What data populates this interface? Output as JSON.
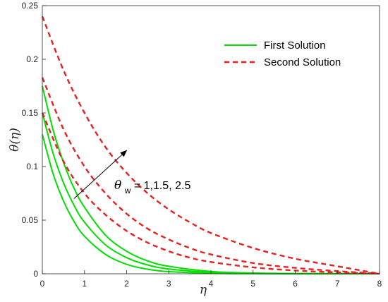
{
  "chart_data": {
    "type": "line",
    "xlabel": "η",
    "ylabel": "θ(η)",
    "xlim": [
      0,
      8
    ],
    "ylim": [
      0,
      0.25
    ],
    "xticks": [
      "0",
      "1",
      "2",
      "3",
      "4",
      "5",
      "6",
      "7",
      "8"
    ],
    "yticks": [
      "0",
      "0.05",
      "0.1",
      "0.15",
      "0.2",
      "0.25"
    ],
    "grid": false,
    "legend_placement": "top-right",
    "legend": [
      "First Solution",
      "Second Solution"
    ],
    "annotation": {
      "symbol": "θ",
      "subscript": "w",
      "text": " = 1,1.5, 2.5",
      "arrow_from": [
        0.75,
        0.07
      ],
      "arrow_to": [
        2.0,
        0.115
      ]
    },
    "colors": {
      "first": "#00e000",
      "second": "#e82020"
    },
    "series": [
      {
        "group": "first",
        "values": [
          [
            0,
            0.13
          ],
          [
            0.25,
            0.094
          ],
          [
            0.5,
            0.068
          ],
          [
            0.75,
            0.049
          ],
          [
            1,
            0.035
          ],
          [
            1.5,
            0.018
          ],
          [
            2,
            0.0088
          ],
          [
            2.5,
            0.0042
          ],
          [
            3,
            0.002
          ],
          [
            4,
            0.0005
          ],
          [
            5,
            0.0001
          ],
          [
            6,
            0
          ],
          [
            7,
            0
          ],
          [
            8,
            0
          ]
        ]
      },
      {
        "group": "first",
        "values": [
          [
            0,
            0.15
          ],
          [
            0.25,
            0.113
          ],
          [
            0.5,
            0.085
          ],
          [
            0.75,
            0.064
          ],
          [
            1,
            0.048
          ],
          [
            1.5,
            0.027
          ],
          [
            2,
            0.015
          ],
          [
            2.5,
            0.0082
          ],
          [
            3,
            0.0045
          ],
          [
            4,
            0.0012
          ],
          [
            5,
            0.0003
          ],
          [
            6,
            0.0001
          ],
          [
            7,
            0
          ],
          [
            8,
            0
          ]
        ]
      },
      {
        "group": "first",
        "values": [
          [
            0,
            0.175
          ],
          [
            0.25,
            0.135
          ],
          [
            0.5,
            0.104
          ],
          [
            0.75,
            0.08
          ],
          [
            1,
            0.062
          ],
          [
            1.5,
            0.036
          ],
          [
            2,
            0.021
          ],
          [
            2.5,
            0.012
          ],
          [
            3,
            0.007
          ],
          [
            4,
            0.0022
          ],
          [
            5,
            0.0007
          ],
          [
            6,
            0.0002
          ],
          [
            7,
            0.0001
          ],
          [
            8,
            0
          ]
        ]
      },
      {
        "group": "second",
        "values": [
          [
            0,
            0.15
          ],
          [
            0.5,
            0.105
          ],
          [
            1,
            0.075
          ],
          [
            1.5,
            0.055
          ],
          [
            2,
            0.04
          ],
          [
            2.5,
            0.029
          ],
          [
            3,
            0.021
          ],
          [
            3.5,
            0.015
          ],
          [
            4,
            0.011
          ],
          [
            5,
            0.006
          ],
          [
            6,
            0.003
          ],
          [
            7,
            0.0013
          ],
          [
            8,
            0
          ]
        ]
      },
      {
        "group": "second",
        "values": [
          [
            0,
            0.183
          ],
          [
            0.5,
            0.135
          ],
          [
            1,
            0.1
          ],
          [
            1.5,
            0.075
          ],
          [
            2,
            0.056
          ],
          [
            2.5,
            0.042
          ],
          [
            3,
            0.032
          ],
          [
            3.5,
            0.024
          ],
          [
            4,
            0.018
          ],
          [
            5,
            0.01
          ],
          [
            6,
            0.0055
          ],
          [
            7,
            0.0025
          ],
          [
            8,
            0
          ]
        ]
      },
      {
        "group": "second",
        "values": [
          [
            0,
            0.24
          ],
          [
            0.5,
            0.19
          ],
          [
            1,
            0.15
          ],
          [
            1.5,
            0.118
          ],
          [
            2,
            0.094
          ],
          [
            2.5,
            0.075
          ],
          [
            3,
            0.06
          ],
          [
            3.5,
            0.048
          ],
          [
            4,
            0.038
          ],
          [
            5,
            0.024
          ],
          [
            6,
            0.014
          ],
          [
            7,
            0.007
          ],
          [
            8,
            0
          ]
        ]
      }
    ]
  }
}
